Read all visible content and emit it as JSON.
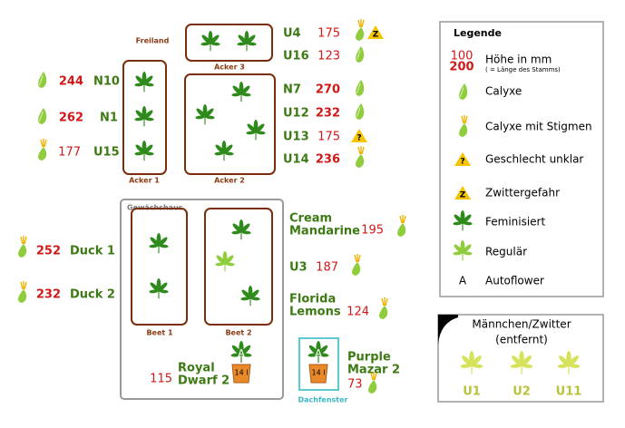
{
  "labels": {
    "freiland": "Freiland",
    "acker3": "Acker 3",
    "acker1": "Acker 1",
    "acker2": "Acker 2",
    "gewaechshaus": "Gewächshaus",
    "beet1": "Beet 1",
    "beet2": "Beet 2",
    "dachfenster": "Dachfenster"
  },
  "pot_label": "14 l",
  "plants": [
    {
      "name": [
        "U4"
      ],
      "height": 175,
      "icon": "stigma",
      "flag": "hermaphrodite"
    },
    {
      "name": [
        "U16"
      ],
      "height": 123,
      "icon": "calyx"
    },
    {
      "name": [
        "N10"
      ],
      "height": 244,
      "icon": "calyx"
    },
    {
      "name": [
        "N1"
      ],
      "height": 262,
      "icon": "calyx"
    },
    {
      "name": [
        "U15"
      ],
      "height": 177,
      "icon": "stigma"
    },
    {
      "name": [
        "N7"
      ],
      "height": 270,
      "icon": "calyx"
    },
    {
      "name": [
        "U12"
      ],
      "height": 232,
      "icon": "calyx"
    },
    {
      "name": [
        "U13"
      ],
      "height": 175,
      "flag": "unclear"
    },
    {
      "name": [
        "U14"
      ],
      "height": 236,
      "icon": "stigma"
    },
    {
      "name": [
        "Cream",
        "Mandarine"
      ],
      "height": 195,
      "icon": "stigma"
    },
    {
      "name": [
        "U3"
      ],
      "height": 187,
      "icon": "stigma"
    },
    {
      "name": [
        "Florida",
        "Lemons"
      ],
      "height": 124,
      "icon": "stigma"
    },
    {
      "name": [
        "Duck 1"
      ],
      "height": 252,
      "icon": "stigma"
    },
    {
      "name": [
        "Duck 2"
      ],
      "height": 232,
      "icon": "stigma"
    },
    {
      "name": [
        "Royal",
        "Dwarf 2"
      ],
      "height": 115,
      "pot": true
    },
    {
      "name": [
        "Purple",
        "Mazar 2"
      ],
      "height": 73,
      "icon": "stigma",
      "pot": true
    }
  ],
  "legend": {
    "title": "Legende",
    "height_examples": [
      100,
      200
    ],
    "height_label": "Höhe in mm",
    "height_note": "( = Länge des Stamms)",
    "items": [
      {
        "symbol": "calyx",
        "label": "Calyxe"
      },
      {
        "symbol": "stigma",
        "label": "Calyxe mit Stigmen"
      },
      {
        "symbol": "unclear",
        "text": "?",
        "label": "Geschlecht unklar"
      },
      {
        "symbol": "hermaphrodite",
        "text": "Z",
        "label": "Zwittergefahr"
      },
      {
        "symbol": "feminized",
        "label": "Feminisiert"
      },
      {
        "symbol": "regular",
        "label": "Regulär"
      },
      {
        "symbol": "auto",
        "text": "A",
        "label": "Autoflower"
      }
    ]
  },
  "removed": {
    "title": [
      "Männchen/Zwitter",
      "(entfernt)"
    ],
    "plants": [
      "U1",
      "U2",
      "U11"
    ]
  }
}
